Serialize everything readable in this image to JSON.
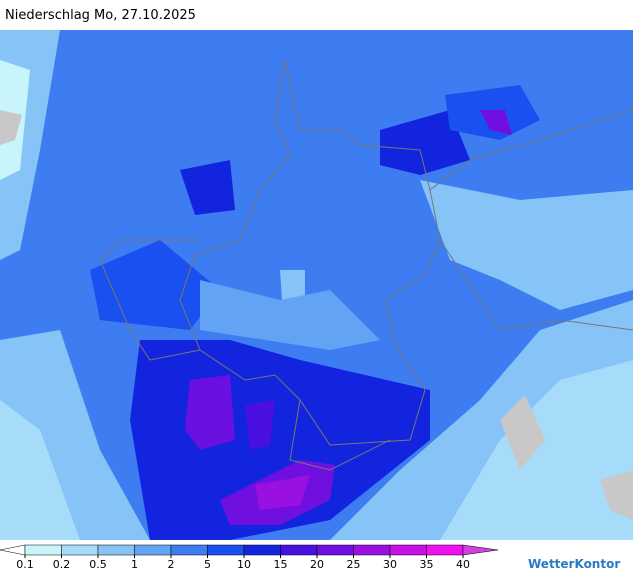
{
  "header": {
    "title": "Niederschlag Mo, 27.10.2025"
  },
  "legend": {
    "levels": [
      0.1,
      0.2,
      0.5,
      1,
      2,
      5,
      10,
      15,
      20,
      25,
      30,
      35,
      40
    ],
    "colors": [
      "#ffffff",
      "#c8f4fc",
      "#a6dcfa",
      "#86c4f7",
      "#63a3f4",
      "#3d7cf1",
      "#1a4ff0",
      "#1224de",
      "#4a10e0",
      "#7010e0",
      "#9a10e0",
      "#c810e8",
      "#f010f0",
      "#d040e0"
    ]
  },
  "logo": {
    "text": "WetterKontor"
  }
}
